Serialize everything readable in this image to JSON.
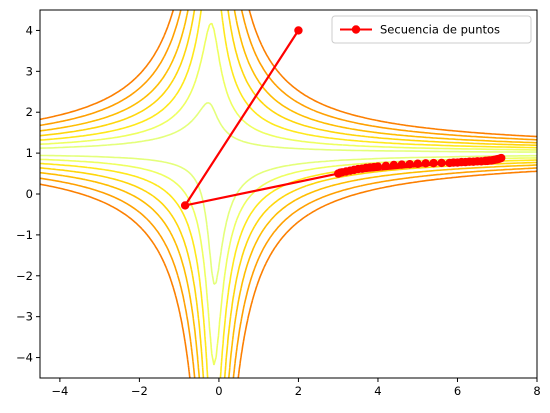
{
  "chart_data": {
    "type": "line",
    "title": "",
    "xlabel": "",
    "ylabel": "",
    "xlim": [
      -4.5,
      8
    ],
    "ylim": [
      -4.5,
      4.5
    ],
    "x_ticks": [
      -4,
      -2,
      0,
      2,
      4,
      6,
      8
    ],
    "y_ticks": [
      -4,
      -3,
      -2,
      -1,
      0,
      1,
      2,
      3,
      4
    ],
    "x_tick_labels": [
      "−4",
      "−2",
      "0",
      "2",
      "4",
      "6",
      "8"
    ],
    "y_tick_labels": [
      "−4",
      "−3",
      "−2",
      "−1",
      "0",
      "1",
      "2",
      "3",
      "4"
    ],
    "grid": false,
    "legend_position": "top-right",
    "contour": {
      "function": "x^2 * (y - 1)^2 levels (Wolfram-like polynomial surface)",
      "colormap": "Wistia",
      "colors": [
        "#e4ff7a",
        "#eeff5f",
        "#ffe81a",
        "#ffd60a",
        "#ffbd00",
        "#ffa000",
        "#fc7f00"
      ]
    },
    "series": [
      {
        "name": "Secuencia de puntos",
        "color": "#ff0000",
        "marker": "circle",
        "points": [
          [
            2.0,
            4.0
          ],
          [
            -0.85,
            -0.28
          ],
          [
            3.0,
            0.5
          ],
          [
            7.1,
            0.88
          ],
          [
            3.05,
            0.52
          ],
          [
            7.05,
            0.86
          ],
          [
            3.1,
            0.53
          ],
          [
            7.0,
            0.85
          ],
          [
            3.2,
            0.55
          ],
          [
            6.95,
            0.84
          ],
          [
            3.3,
            0.57
          ],
          [
            6.9,
            0.83
          ],
          [
            3.4,
            0.59
          ],
          [
            6.85,
            0.82
          ],
          [
            3.5,
            0.61
          ],
          [
            6.8,
            0.82
          ],
          [
            3.6,
            0.62
          ],
          [
            6.75,
            0.81
          ],
          [
            3.7,
            0.64
          ],
          [
            6.7,
            0.81
          ],
          [
            3.8,
            0.65
          ],
          [
            6.6,
            0.8
          ],
          [
            3.9,
            0.66
          ],
          [
            6.5,
            0.8
          ],
          [
            4.0,
            0.67
          ],
          [
            6.4,
            0.79
          ],
          [
            4.2,
            0.69
          ],
          [
            6.3,
            0.79
          ],
          [
            4.4,
            0.71
          ],
          [
            6.2,
            0.78
          ],
          [
            4.6,
            0.72
          ],
          [
            6.1,
            0.78
          ],
          [
            4.8,
            0.73
          ],
          [
            6.0,
            0.77
          ],
          [
            5.0,
            0.74
          ],
          [
            5.9,
            0.77
          ],
          [
            5.2,
            0.75
          ],
          [
            5.8,
            0.76
          ],
          [
            5.4,
            0.755
          ],
          [
            5.6,
            0.76
          ]
        ]
      }
    ]
  }
}
